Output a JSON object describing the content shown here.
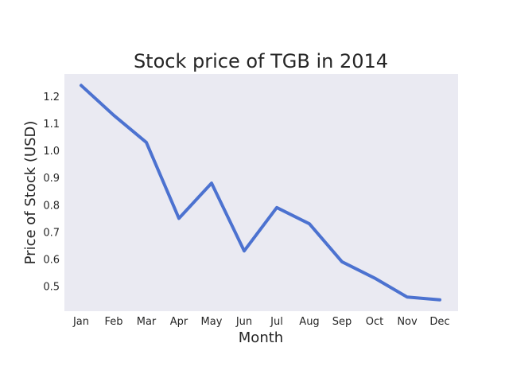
{
  "chart_data": {
    "type": "line",
    "title": "Stock price of TGB in 2014",
    "xlabel": "Month",
    "ylabel": "Price of Stock (USD)",
    "categories": [
      "Jan",
      "Feb",
      "Mar",
      "Apr",
      "May",
      "Jun",
      "Jul",
      "Aug",
      "Sep",
      "Oct",
      "Nov",
      "Dec"
    ],
    "series": [
      {
        "values": [
          1.24,
          1.13,
          1.03,
          0.75,
          0.88,
          0.63,
          0.79,
          0.73,
          0.59,
          0.53,
          0.46,
          0.45
        ]
      }
    ],
    "yticks": [
      "0.5",
      "0.6",
      "0.7",
      "0.8",
      "0.9",
      "1.0",
      "1.1",
      "1.2"
    ],
    "ylim": [
      0.408,
      1.282
    ],
    "grid": false,
    "colors": {
      "line": "#4c72d0",
      "plot_background": "#eaeaf2",
      "text": "#262626"
    }
  }
}
